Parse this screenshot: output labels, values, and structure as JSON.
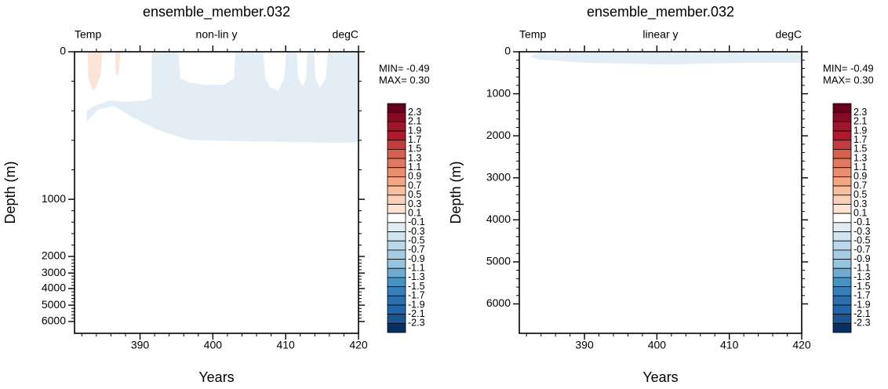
{
  "chart_data": [
    {
      "type": "contour",
      "title": "ensemble_member.032",
      "left_label": "Temp",
      "center_label": "non-lin y",
      "right_label": "degC",
      "xlabel": "Years",
      "ylabel": "Depth (m)",
      "yscale": "irregular",
      "y_reversed": true,
      "xlim": [
        381,
        420
      ],
      "xticks": [
        390,
        400,
        410,
        420
      ],
      "ylim": [
        0,
        6700
      ],
      "yticks": [
        0,
        1000,
        2000,
        3000,
        4000,
        5000,
        6000
      ],
      "min_label": "MIN= -0.49",
      "max_label": "MAX=  0.30",
      "regions": [
        {
          "color": "#e2edf5",
          "x": [
            382.7,
            384.2,
            386.4,
            389.1,
            392.3,
            396.6,
            403.1,
            410.6,
            417.1,
            420,
            420,
            382.7
          ],
          "y": [
            473,
            394,
            367,
            447,
            527,
            596,
            606,
            612,
            617,
            612,
            0,
            0
          ]
        },
        {
          "color": "#ffffff",
          "x": [
            381,
            391.6,
            391.6,
            390.7,
            388,
            385.9,
            383.7,
            382.1,
            381
          ],
          "y": [
            0,
            0,
            314,
            330,
            340,
            330,
            367,
            420,
            447
          ]
        },
        {
          "color": "#ffffff",
          "x": [
            395.3,
            403.1,
            402.9,
            401.5,
            398.8,
            396.6,
            395.5
          ],
          "y": [
            0,
            0,
            181,
            223,
            223,
            207,
            181
          ]
        },
        {
          "color": "#ffffff",
          "x": [
            406.9,
            410.1,
            409.8,
            409.0,
            407.9,
            407.2
          ],
          "y": [
            0,
            0,
            181,
            261,
            245,
            181
          ]
        },
        {
          "color": "#ffffff",
          "x": [
            411.5,
            413.0,
            412.8,
            412.4,
            411.7
          ],
          "y": [
            0,
            0,
            181,
            234,
            181
          ]
        },
        {
          "color": "#ffffff",
          "x": [
            413.9,
            415.8,
            415.5,
            414.7,
            414.1
          ],
          "y": [
            0,
            0,
            181,
            245,
            181
          ]
        },
        {
          "color": "#fbe3d6",
          "x": [
            382.8,
            384.8,
            384.6,
            383.9,
            383.5,
            382.9
          ],
          "y": [
            0,
            0,
            154,
            245,
            261,
            181
          ]
        },
        {
          "color": "#fbe3d6",
          "x": [
            386.6,
            387.3,
            387.1,
            386.8,
            386.6
          ],
          "y": [
            0,
            0,
            128,
            165,
            101
          ]
        }
      ],
      "colorbar": {
        "levels": [
          2.3,
          2.1,
          1.9,
          1.7,
          1.5,
          1.3,
          1.1,
          0.9,
          0.7,
          0.5,
          0.3,
          0.1,
          -0.1,
          -0.3,
          -0.5,
          -0.7,
          -0.9,
          -1.1,
          -1.3,
          -1.5,
          -1.7,
          -1.9,
          -2.1,
          -2.3
        ],
        "colors": [
          "#67001f",
          "#850c24",
          "#a0162b",
          "#b2182b",
          "#c43c3c",
          "#d6604d",
          "#e0775e",
          "#ea8e70",
          "#f4a582",
          "#f8bea0",
          "#fbd0b9",
          "#fde2d2",
          "#ffffff",
          "#e1edf5",
          "#d1e5f0",
          "#b9d8e9",
          "#a5cce3",
          "#92c5de",
          "#6fabd0",
          "#4393c3",
          "#3580b9",
          "#2c6fac",
          "#2166ac",
          "#1a5591",
          "#053061"
        ]
      }
    },
    {
      "type": "contour",
      "title": "ensemble_member.032",
      "left_label": "Temp",
      "center_label": "linear y",
      "right_label": "degC",
      "xlabel": "Years",
      "ylabel": "Depth (m)",
      "yscale": "linear",
      "y_reversed": true,
      "xlim": [
        381,
        420
      ],
      "xticks": [
        390,
        400,
        410,
        420
      ],
      "ylim": [
        0,
        6700
      ],
      "yticks": [
        0,
        1000,
        2000,
        3000,
        4000,
        5000,
        6000
      ],
      "min_label": "MIN= -0.49",
      "max_label": "MAX=  0.30",
      "regions": [
        {
          "color": "#e2edf5",
          "x": [
            382.4,
            384.0,
            420,
            420,
            412.1,
            401.3,
            390.5,
            384.0
          ],
          "y": [
            113,
            0,
            0,
            263,
            263,
            300,
            263,
            188
          ]
        }
      ],
      "colorbar": {
        "levels": [
          2.3,
          2.1,
          1.9,
          1.7,
          1.5,
          1.3,
          1.1,
          0.9,
          0.7,
          0.5,
          0.3,
          0.1,
          -0.1,
          -0.3,
          -0.5,
          -0.7,
          -0.9,
          -1.1,
          -1.3,
          -1.5,
          -1.7,
          -1.9,
          -2.1,
          -2.3
        ],
        "colors": [
          "#67001f",
          "#850c24",
          "#a0162b",
          "#b2182b",
          "#c43c3c",
          "#d6604d",
          "#e0775e",
          "#ea8e70",
          "#f4a582",
          "#f8bea0",
          "#fbd0b9",
          "#fde2d2",
          "#ffffff",
          "#e1edf5",
          "#d1e5f0",
          "#b9d8e9",
          "#a5cce3",
          "#92c5de",
          "#6fabd0",
          "#4393c3",
          "#3580b9",
          "#2c6fac",
          "#2166ac",
          "#1a5591",
          "#053061"
        ]
      }
    }
  ]
}
